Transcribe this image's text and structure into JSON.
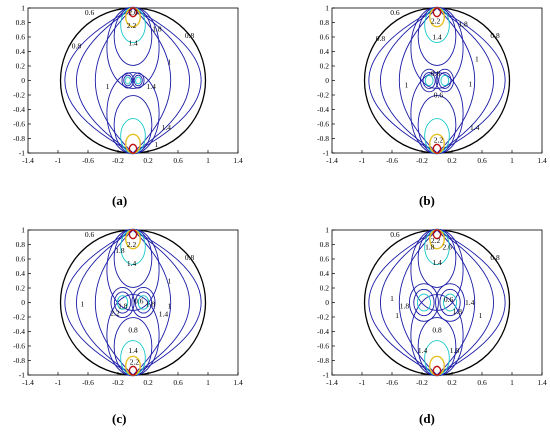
{
  "colors": {
    "boundary": "#000000",
    "level_low": "#1a1aa6",
    "level_mid": "#16c8c8",
    "level_high": "#e8c020",
    "level_peak": "#c01010"
  },
  "chart_data": [
    {
      "type": "contour",
      "caption": "(a)",
      "xlim": [
        -1.4,
        1.4
      ],
      "ylim": [
        -1,
        1
      ],
      "xticks": [
        "-1.4",
        "-1",
        "-0.6",
        "-0.2",
        "0.2",
        "0.6",
        "1",
        "1.4"
      ],
      "yticks": [
        "1",
        "0.8",
        "0.6",
        "0.4",
        "0.2",
        "0",
        "-0.2",
        "-0.4",
        "-0.6",
        "-0.8",
        "-1"
      ],
      "contour_labels": [
        {
          "text": "2.6",
          "x": 0.0,
          "y": 0.94
        },
        {
          "text": "2.2",
          "x": -0.02,
          "y": 0.76
        },
        {
          "text": "0.6",
          "x": -0.6,
          "y": 0.94
        },
        {
          "text": "1.8",
          "x": 0.33,
          "y": 0.71
        },
        {
          "text": "0.8",
          "x": -0.78,
          "y": 0.48
        },
        {
          "text": "1.4",
          "x": 0.0,
          "y": 0.52
        },
        {
          "text": "0.8",
          "x": 0.78,
          "y": 0.62
        },
        {
          "text": "1",
          "x": 0.5,
          "y": 0.26
        },
        {
          "text": "1",
          "x": -0.35,
          "y": -0.08
        },
        {
          "text": "1.4",
          "x": 0.25,
          "y": -0.08
        },
        {
          "text": "1.4",
          "x": 0.46,
          "y": -0.65
        },
        {
          "text": "1",
          "x": 0.32,
          "y": -0.88
        }
      ]
    },
    {
      "type": "contour",
      "caption": "(b)",
      "xlim": [
        -1.4,
        1.4
      ],
      "ylim": [
        -1,
        1
      ],
      "xticks": [
        "-1.4",
        "-1",
        "-0.6",
        "-0.2",
        "0.2",
        "0.6",
        "1",
        "1.4"
      ],
      "yticks": [
        "1",
        "0.8",
        "0.6",
        "0.4",
        "0.2",
        "0",
        "-0.2",
        "-0.4",
        "-0.6",
        "-0.8",
        "-1"
      ],
      "contour_labels": [
        {
          "text": "0.6",
          "x": -0.58,
          "y": 0.94
        },
        {
          "text": "2.2",
          "x": -0.02,
          "y": 0.82
        },
        {
          "text": "0.8",
          "x": -0.78,
          "y": 0.58
        },
        {
          "text": "1.4",
          "x": 0.0,
          "y": 0.6
        },
        {
          "text": "1.8",
          "x": 0.36,
          "y": 0.78
        },
        {
          "text": "0.8",
          "x": 0.8,
          "y": 0.62
        },
        {
          "text": "1",
          "x": 0.55,
          "y": 0.3
        },
        {
          "text": "0.6",
          "x": -0.02,
          "y": 0.1
        },
        {
          "text": "1",
          "x": -0.42,
          "y": -0.06
        },
        {
          "text": "0.6",
          "x": 0.02,
          "y": -0.2
        },
        {
          "text": "1",
          "x": 0.46,
          "y": -0.05
        },
        {
          "text": "1.4",
          "x": 0.52,
          "y": -0.65
        },
        {
          "text": "2.2",
          "x": 0.02,
          "y": -0.82
        }
      ]
    },
    {
      "type": "contour",
      "caption": "(c)",
      "xlim": [
        -1.4,
        1.4
      ],
      "ylim": [
        -1,
        1
      ],
      "xticks": [
        "-1.4",
        "-1",
        "-0.6",
        "-0.2",
        "0.2",
        "0.6",
        "1",
        "1.4"
      ],
      "yticks": [
        "1",
        "0.8",
        "0.6",
        "0.4",
        "0.2",
        "0",
        "-0.2",
        "-0.4",
        "-0.6",
        "-0.8",
        "-1"
      ],
      "contour_labels": [
        {
          "text": "0.6",
          "x": -0.6,
          "y": 0.94
        },
        {
          "text": "2.2",
          "x": -0.02,
          "y": 0.8
        },
        {
          "text": "1.8",
          "x": -0.18,
          "y": 0.72
        },
        {
          "text": "0.8",
          "x": 0.78,
          "y": 0.62
        },
        {
          "text": "1.4",
          "x": -0.02,
          "y": 0.54
        },
        {
          "text": "1",
          "x": 0.5,
          "y": 0.3
        },
        {
          "text": "1",
          "x": -0.7,
          "y": -0.02
        },
        {
          "text": "1.8",
          "x": -0.14,
          "y": -0.05
        },
        {
          "text": "0.6",
          "x": 0.08,
          "y": 0.02
        },
        {
          "text": "1.8",
          "x": 0.24,
          "y": -0.02
        },
        {
          "text": "1",
          "x": 0.5,
          "y": -0.05
        },
        {
          "text": "1.4",
          "x": 0.42,
          "y": -0.16
        },
        {
          "text": "2.2",
          "x": -0.25,
          "y": -0.14
        },
        {
          "text": "0.8",
          "x": 0.0,
          "y": -0.38
        },
        {
          "text": "1.4",
          "x": 0.0,
          "y": -0.66
        },
        {
          "text": "2.2",
          "x": 0.02,
          "y": -0.82
        }
      ]
    },
    {
      "type": "contour",
      "caption": "(d)",
      "xlim": [
        -1.4,
        1.4
      ],
      "ylim": [
        -1,
        1
      ],
      "xticks": [
        "-1.4",
        "-1",
        "-0.6",
        "-0.2",
        "0.2",
        "0.6",
        "1",
        "1.4"
      ],
      "yticks": [
        "1",
        "0.8",
        "0.6",
        "0.4",
        "0.2",
        "0",
        "-0.2",
        "-0.4",
        "-0.6",
        "-0.8",
        "-1"
      ],
      "contour_labels": [
        {
          "text": "0.6",
          "x": -0.58,
          "y": 0.94
        },
        {
          "text": "2.2",
          "x": -0.02,
          "y": 0.86
        },
        {
          "text": "1.8",
          "x": -0.1,
          "y": 0.77
        },
        {
          "text": "2.6",
          "x": 0.14,
          "y": 0.77
        },
        {
          "text": "1.4",
          "x": 0.0,
          "y": 0.55
        },
        {
          "text": "0.8",
          "x": 0.8,
          "y": 0.62
        },
        {
          "text": "1",
          "x": -0.62,
          "y": 0.06
        },
        {
          "text": "1.8",
          "x": -0.45,
          "y": -0.05
        },
        {
          "text": "0.6",
          "x": 0.16,
          "y": 0.04
        },
        {
          "text": "1.4",
          "x": 0.45,
          "y": 0.0
        },
        {
          "text": "1",
          "x": 0.6,
          "y": -0.18
        },
        {
          "text": "1.8",
          "x": 0.28,
          "y": -0.12
        },
        {
          "text": "1",
          "x": -0.55,
          "y": -0.18
        },
        {
          "text": "0.8",
          "x": 0.0,
          "y": -0.38
        },
        {
          "text": "1.4",
          "x": -0.2,
          "y": -0.66
        },
        {
          "text": "1.8",
          "x": 0.24,
          "y": -0.66
        }
      ]
    }
  ]
}
